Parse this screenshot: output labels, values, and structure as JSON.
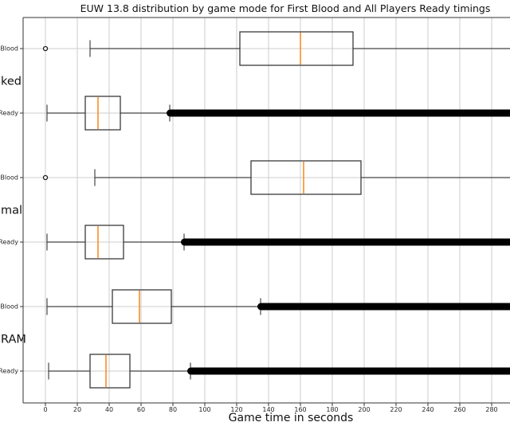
{
  "chart_data": {
    "type": "boxplot",
    "orientation": "horizontal",
    "title": "EUW 13.8 distribution by game mode for First Blood and All Players Ready timings",
    "xlabel": "Game time in seconds",
    "x_ticks": [
      0,
      20,
      40,
      60,
      80,
      100,
      120,
      140,
      160,
      180,
      200,
      220,
      240,
      260,
      280
    ],
    "xlim": [
      -14,
      291.5
    ],
    "grid": true,
    "legend": "none",
    "group_labels": [
      {
        "label": "ked"
      },
      {
        "label": "mal"
      },
      {
        "label": "RAM"
      }
    ],
    "rows": [
      {
        "label": "Blood",
        "whislo": 28,
        "q1": 122,
        "med": 160,
        "q3": 193,
        "whishi": null,
        "whisker_beyond_right_edge": true,
        "outliers": [
          0
        ],
        "dense_fliers_from": null
      },
      {
        "label": "Ready",
        "whislo": 1,
        "q1": 25,
        "med": 33,
        "q3": 47,
        "whishi": 78,
        "whisker_beyond_right_edge": false,
        "outliers": [],
        "dense_fliers_from": 78
      },
      {
        "label": "Blood",
        "whislo": 31,
        "q1": 129,
        "med": 162,
        "q3": 198,
        "whishi": null,
        "whisker_beyond_right_edge": true,
        "outliers": [
          0
        ],
        "dense_fliers_from": null
      },
      {
        "label": "Ready",
        "whislo": 1,
        "q1": 25,
        "med": 33,
        "q3": 49,
        "whishi": 87,
        "whisker_beyond_right_edge": false,
        "outliers": [],
        "dense_fliers_from": 87
      },
      {
        "label": "Blood",
        "whislo": 1,
        "q1": 42,
        "med": 59,
        "q3": 79,
        "whishi": 135,
        "whisker_beyond_right_edge": false,
        "outliers": [],
        "dense_fliers_from": 135
      },
      {
        "label": "Ready",
        "whislo": 2,
        "q1": 28,
        "med": 38,
        "q3": 53,
        "whishi": 91,
        "whisker_beyond_right_edge": false,
        "outliers": [],
        "dense_fliers_from": 91
      }
    ],
    "colors": {
      "median": "#ff8c26",
      "box_edge": "#3a3a3a",
      "whisker": "#454545",
      "grid": "#cccccc",
      "fliers": "#000000",
      "spine": "#333333",
      "tick_text": "#262626",
      "background": "#ffffff"
    }
  }
}
